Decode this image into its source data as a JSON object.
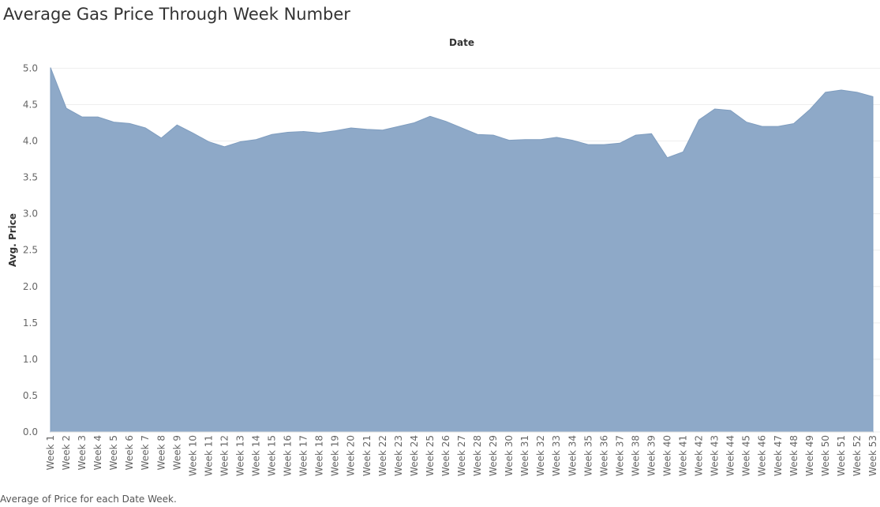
{
  "chart_data": {
    "type": "area",
    "title": "Average Gas Price Through Week Number",
    "column_header": "Date",
    "ylabel": "Avg. Price",
    "caption": "Average of Price for each Date Week.",
    "ylim": [
      0,
      5.2
    ],
    "yticks": [
      "0.0",
      "0.5",
      "1.0",
      "1.5",
      "2.0",
      "2.5",
      "3.0",
      "3.5",
      "4.0",
      "4.5",
      "5.0"
    ],
    "color": "#8ea9c8",
    "grid": true,
    "categories": [
      "Week 1",
      "Week 2",
      "Week 3",
      "Week 4",
      "Week 5",
      "Week 6",
      "Week 7",
      "Week 8",
      "Week 9",
      "Week 10",
      "Week 11",
      "Week 12",
      "Week 13",
      "Week 14",
      "Week 15",
      "Week 16",
      "Week 17",
      "Week 18",
      "Week 19",
      "Week 20",
      "Week 21",
      "Week 22",
      "Week 23",
      "Week 24",
      "Week 25",
      "Week 26",
      "Week 27",
      "Week 28",
      "Week 29",
      "Week 30",
      "Week 31",
      "Week 32",
      "Week 33",
      "Week 34",
      "Week 35",
      "Week 36",
      "Week 37",
      "Week 38",
      "Week 39",
      "Week 40",
      "Week 41",
      "Week 42",
      "Week 43",
      "Week 44",
      "Week 45",
      "Week 46",
      "Week 47",
      "Week 48",
      "Week 49",
      "Week 50",
      "Week 51",
      "Week 52",
      "Week 53"
    ],
    "values": [
      5.01,
      4.45,
      4.33,
      4.33,
      4.26,
      4.24,
      4.18,
      4.04,
      4.22,
      4.11,
      3.99,
      3.92,
      3.99,
      4.02,
      4.09,
      4.12,
      4.13,
      4.11,
      4.14,
      4.18,
      4.16,
      4.15,
      4.2,
      4.25,
      4.34,
      4.27,
      4.18,
      4.09,
      4.08,
      4.01,
      4.02,
      4.02,
      4.05,
      4.01,
      3.95,
      3.95,
      3.97,
      4.08,
      4.1,
      3.77,
      3.85,
      4.29,
      4.44,
      4.42,
      4.26,
      4.2,
      4.2,
      4.24,
      4.43,
      4.67,
      4.7,
      4.67,
      4.61
    ]
  }
}
